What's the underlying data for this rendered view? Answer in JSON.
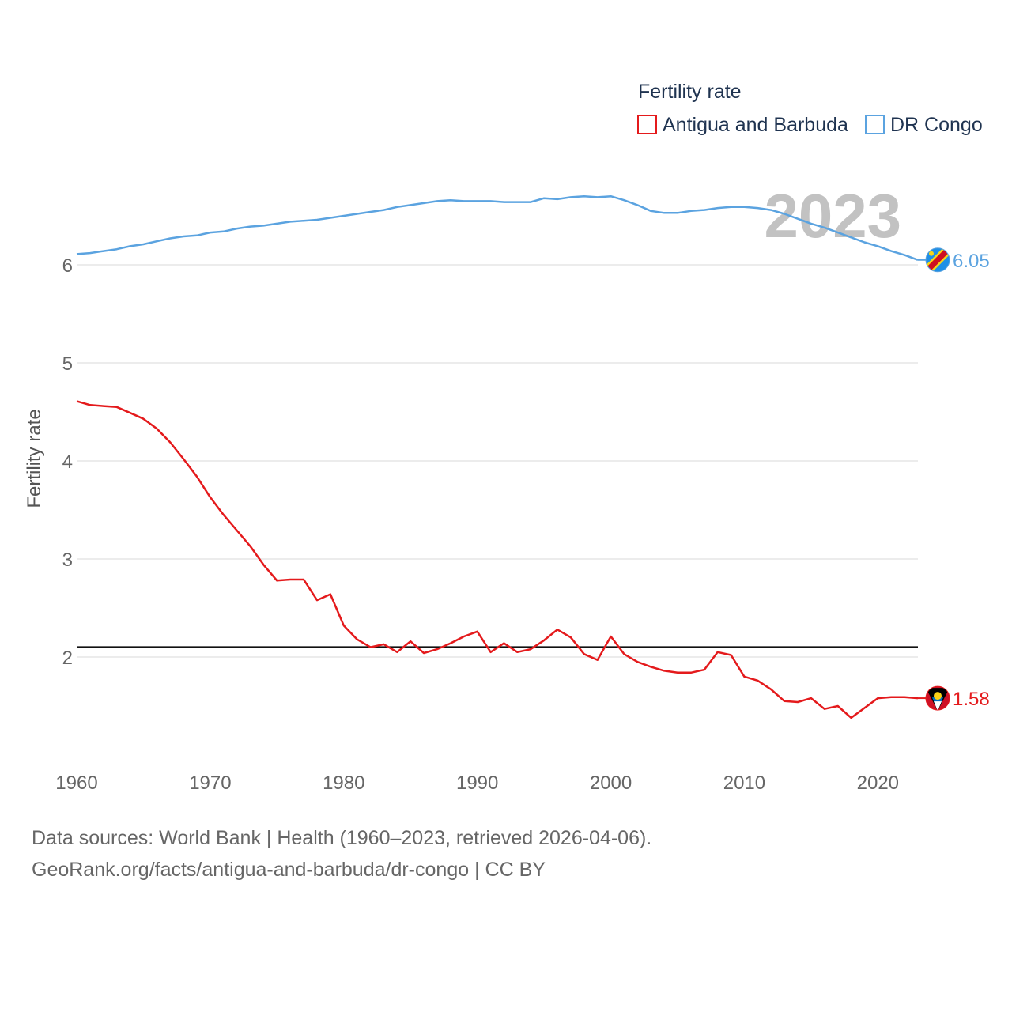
{
  "chart_data": {
    "type": "line",
    "title": "",
    "xlabel": "",
    "ylabel": "Fertility rate",
    "xlim": [
      1960,
      2023
    ],
    "ylim": [
      1,
      7
    ],
    "yticks": [
      2,
      3,
      4,
      5,
      6
    ],
    "xticks": [
      1960,
      1970,
      1980,
      1990,
      2000,
      2010,
      2020
    ],
    "legend_title": "Fertility rate",
    "legend_position": "top-right",
    "year_label": "2023",
    "reference_line": 2.1,
    "x": [
      1960,
      1961,
      1962,
      1963,
      1964,
      1965,
      1966,
      1967,
      1968,
      1969,
      1970,
      1971,
      1972,
      1973,
      1974,
      1975,
      1976,
      1977,
      1978,
      1979,
      1980,
      1981,
      1982,
      1983,
      1984,
      1985,
      1986,
      1987,
      1988,
      1989,
      1990,
      1991,
      1992,
      1993,
      1994,
      1995,
      1996,
      1997,
      1998,
      1999,
      2000,
      2001,
      2002,
      2003,
      2004,
      2005,
      2006,
      2007,
      2008,
      2009,
      2010,
      2011,
      2012,
      2013,
      2014,
      2015,
      2016,
      2017,
      2018,
      2019,
      2020,
      2021,
      2022,
      2023
    ],
    "series": [
      {
        "name": "Antigua and Barbuda",
        "color": "#e41a1c",
        "end_value": "1.58",
        "flag": "antigua-flag-icon",
        "values": [
          4.61,
          4.57,
          4.56,
          4.55,
          4.49,
          4.43,
          4.33,
          4.19,
          4.02,
          3.84,
          3.63,
          3.45,
          3.29,
          3.13,
          2.94,
          2.78,
          2.79,
          2.79,
          2.58,
          2.64,
          2.32,
          2.18,
          2.1,
          2.13,
          2.05,
          2.16,
          2.04,
          2.08,
          2.14,
          2.21,
          2.26,
          2.05,
          2.14,
          2.05,
          2.08,
          2.17,
          2.28,
          2.2,
          2.03,
          1.97,
          2.21,
          2.03,
          1.95,
          1.9,
          1.86,
          1.84,
          1.84,
          1.87,
          2.05,
          2.02,
          1.8,
          1.76,
          1.67,
          1.55,
          1.54,
          1.58,
          1.47,
          1.5,
          1.38,
          1.48,
          1.58,
          1.59,
          1.59,
          1.58
        ]
      },
      {
        "name": "DR Congo",
        "color": "#5ba3e0",
        "end_value": "6.05",
        "flag": "drc-flag-icon",
        "values": [
          6.11,
          6.12,
          6.14,
          6.16,
          6.19,
          6.21,
          6.24,
          6.27,
          6.29,
          6.3,
          6.33,
          6.34,
          6.37,
          6.39,
          6.4,
          6.42,
          6.44,
          6.45,
          6.46,
          6.48,
          6.5,
          6.52,
          6.54,
          6.56,
          6.59,
          6.61,
          6.63,
          6.65,
          6.66,
          6.65,
          6.65,
          6.65,
          6.64,
          6.64,
          6.64,
          6.68,
          6.67,
          6.69,
          6.7,
          6.69,
          6.7,
          6.66,
          6.61,
          6.55,
          6.53,
          6.53,
          6.55,
          6.56,
          6.58,
          6.59,
          6.59,
          6.58,
          6.56,
          6.52,
          6.47,
          6.42,
          6.38,
          6.33,
          6.28,
          6.23,
          6.19,
          6.14,
          6.1,
          6.05
        ]
      }
    ]
  },
  "footer": {
    "source_line": "Data sources: World Bank | Health (1960–2023, retrieved 2026-04-06).",
    "url_line": "GeoRank.org/facts/antigua-and-barbuda/dr-congo | CC BY"
  }
}
